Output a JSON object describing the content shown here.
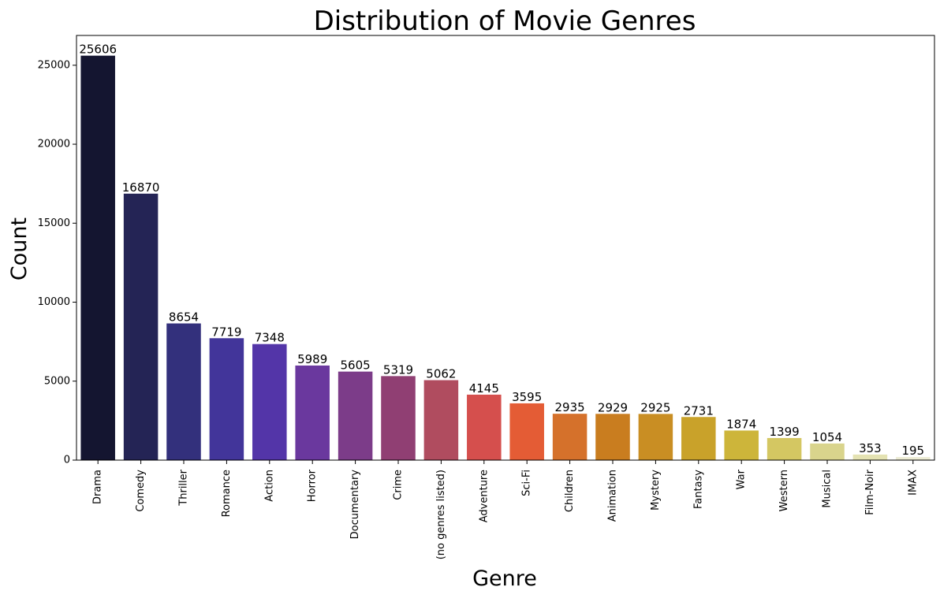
{
  "chart_data": {
    "type": "bar",
    "title": "Distribution of Movie Genres",
    "xlabel": "Genre",
    "ylabel": "Count",
    "categories": [
      "Drama",
      "Comedy",
      "Thriller",
      "Romance",
      "Action",
      "Horror",
      "Documentary",
      "Crime",
      "(no genres listed)",
      "Adventure",
      "Sci-Fi",
      "Children",
      "Animation",
      "Mystery",
      "Fantasy",
      "War",
      "Western",
      "Musical",
      "Film-Noir",
      "IMAX"
    ],
    "values": [
      25606,
      16870,
      8654,
      7719,
      7348,
      5989,
      5605,
      5319,
      5062,
      4145,
      3595,
      2935,
      2929,
      2925,
      2731,
      1874,
      1399,
      1054,
      353,
      195
    ],
    "data_labels": [
      "25606",
      "16870",
      "8654",
      "7719",
      "7348",
      "5989",
      "5605",
      "5319",
      "5062",
      "4145",
      "3595",
      "2935",
      "2929",
      "2925",
      "2731",
      "1874",
      "1399",
      "1054",
      "353",
      "195"
    ],
    "colors": [
      "#141530",
      "#242455",
      "#33307c",
      "#42359a",
      "#5335a8",
      "#6a389e",
      "#7c3c89",
      "#903f73",
      "#b04c5f",
      "#d54f4d",
      "#e45c35",
      "#d5712b",
      "#c97d1f",
      "#c98e23",
      "#c9a22a",
      "#cdb53a",
      "#d4c762",
      "#d9d48c",
      "#e4e2b2",
      "#ecebd3"
    ],
    "ylim": [
      0,
      26886
    ],
    "yticks": [
      0,
      5000,
      10000,
      15000,
      20000,
      25000
    ],
    "ytick_labels": [
      "0",
      "5000",
      "10000",
      "15000",
      "20000",
      "25000"
    ],
    "grid": false,
    "legend": "none"
  }
}
